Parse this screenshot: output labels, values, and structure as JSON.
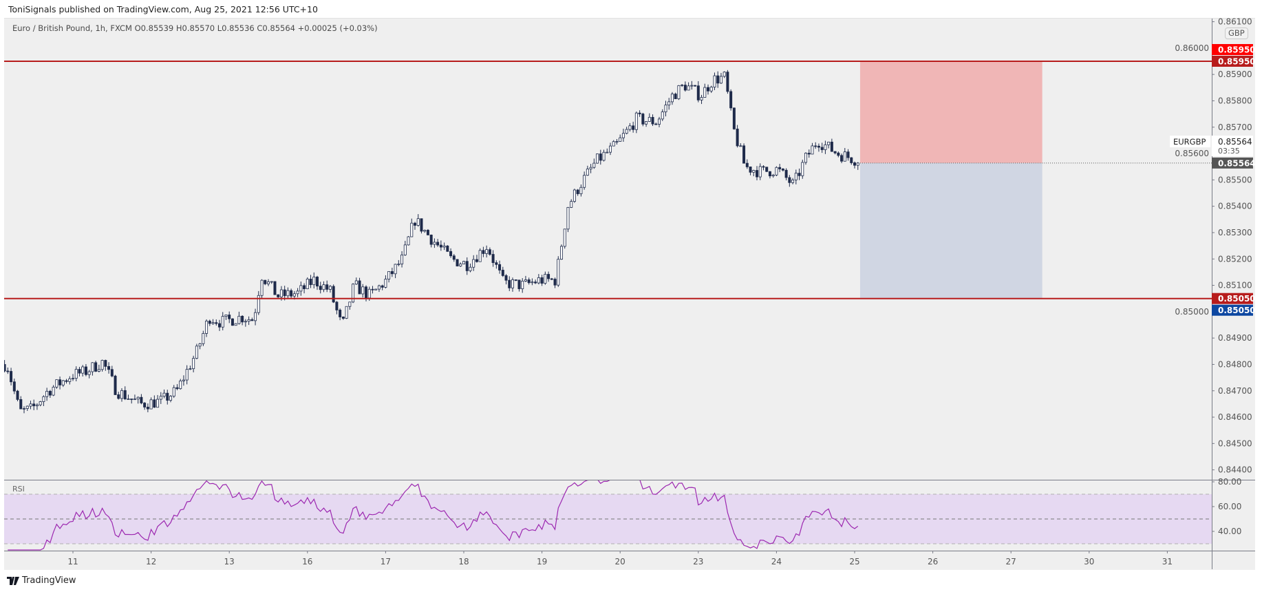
{
  "header": {
    "published": "ToniSignals published on TradingView.com, Aug 25, 2021 12:56 UTC+10"
  },
  "legend": {
    "text": "Euro / British Pound, 1h, FXCM  O0.85539  H0.85570  L0.85536  C0.85564  +0.00025 (+0.03%)"
  },
  "price_axis": {
    "currency": "GBP",
    "ticks": [
      "0.84400",
      "0.84500",
      "0.84600",
      "0.84700",
      "0.84800",
      "0.84900",
      "0.85000",
      "0.85100",
      "0.85200",
      "0.85300",
      "0.85400",
      "0.85500",
      "0.85600",
      "0.85700",
      "0.85800",
      "0.85900",
      "0.86000",
      "0.86100"
    ],
    "tags": {
      "target_top": "0.85950",
      "line_top": "0.85950",
      "symbol": "EURGBP",
      "last_price": "0.85564",
      "countdown": "03:35",
      "current": "0.85564",
      "line_bottom": "0.85050",
      "stop_bottom": "0.85050"
    }
  },
  "rsi": {
    "label": "RSI",
    "ticks": [
      "80.00",
      "60.00",
      "40.00"
    ],
    "upper": 70,
    "middle": 50,
    "lower": 30,
    "line_color": "#9c27b0",
    "band_color": "#e6d9f2"
  },
  "time_axis": {
    "labels": [
      "11",
      "12",
      "13",
      "16",
      "17",
      "18",
      "19",
      "20",
      "23",
      "24",
      "25",
      "26",
      "27",
      "30",
      "31"
    ]
  },
  "footer": {
    "brand": "TradingView"
  },
  "colors": {
    "level_line": "#b71c1c",
    "tag_red": "#ff0000",
    "tag_blue": "#0d47a1",
    "tag_dark": "#555555",
    "profit_zone": "#f0b6b6",
    "loss_zone": "#d0d6e3",
    "candle_down": "#1e2a4a",
    "candle_up": "#ffffff"
  },
  "chart_data": {
    "type": "candlestick",
    "symbol": "EURGBP",
    "interval": "1h",
    "x_unit": "trading days since Aug 11 00:00",
    "price_range": [
      0.8437,
      0.8613
    ],
    "levels": [
      0.8595,
      0.8505
    ],
    "position": {
      "entry": 0.85564,
      "target": 0.8505,
      "stop": 0.8595,
      "start_t": 10.07,
      "end_t": 12.4
    },
    "close_anchors": [
      [
        -0.875,
        0.848
      ],
      [
        -0.835,
        0.8479
      ],
      [
        -0.68,
        0.8462
      ],
      [
        -0.526,
        0.8463
      ],
      [
        -0.32,
        0.847
      ],
      [
        -0.01,
        0.8476
      ],
      [
        0.144,
        0.8477
      ],
      [
        0.381,
        0.8481
      ],
      [
        0.557,
        0.847
      ],
      [
        0.866,
        0.8465
      ],
      [
        1.124,
        0.8466
      ],
      [
        1.33,
        0.847
      ],
      [
        1.588,
        0.8485
      ],
      [
        1.742,
        0.8498
      ],
      [
        1.897,
        0.8496
      ],
      [
        2.155,
        0.8498
      ],
      [
        2.309,
        0.8497
      ],
      [
        2.412,
        0.8514
      ],
      [
        2.619,
        0.8506
      ],
      [
        2.876,
        0.8507
      ],
      [
        3.082,
        0.8512
      ],
      [
        3.289,
        0.8508
      ],
      [
        3.443,
        0.8494
      ],
      [
        3.598,
        0.851
      ],
      [
        3.804,
        0.8506
      ],
      [
        4.01,
        0.8512
      ],
      [
        4.216,
        0.852
      ],
      [
        4.371,
        0.8535
      ],
      [
        4.577,
        0.8528
      ],
      [
        4.835,
        0.852
      ],
      [
        5.041,
        0.8518
      ],
      [
        5.299,
        0.8525
      ],
      [
        5.505,
        0.8511
      ],
      [
        5.763,
        0.851
      ],
      [
        5.969,
        0.8512
      ],
      [
        6.175,
        0.8512
      ],
      [
        6.33,
        0.854
      ],
      [
        6.485,
        0.8548
      ],
      [
        6.691,
        0.8557
      ],
      [
        6.948,
        0.8563
      ],
      [
        7.206,
        0.8573
      ],
      [
        7.464,
        0.8572
      ],
      [
        7.67,
        0.8582
      ],
      [
        7.825,
        0.8586
      ],
      [
        8.031,
        0.8582
      ],
      [
        8.186,
        0.8588
      ],
      [
        8.34,
        0.8589
      ],
      [
        8.443,
        0.857
      ],
      [
        8.598,
        0.8555
      ],
      [
        8.804,
        0.8553
      ],
      [
        9.01,
        0.8554
      ],
      [
        9.216,
        0.8548
      ],
      [
        9.371,
        0.8558
      ],
      [
        9.526,
        0.8565
      ],
      [
        9.784,
        0.856
      ],
      [
        9.99,
        0.8558
      ],
      [
        10.072,
        0.85564
      ]
    ]
  }
}
